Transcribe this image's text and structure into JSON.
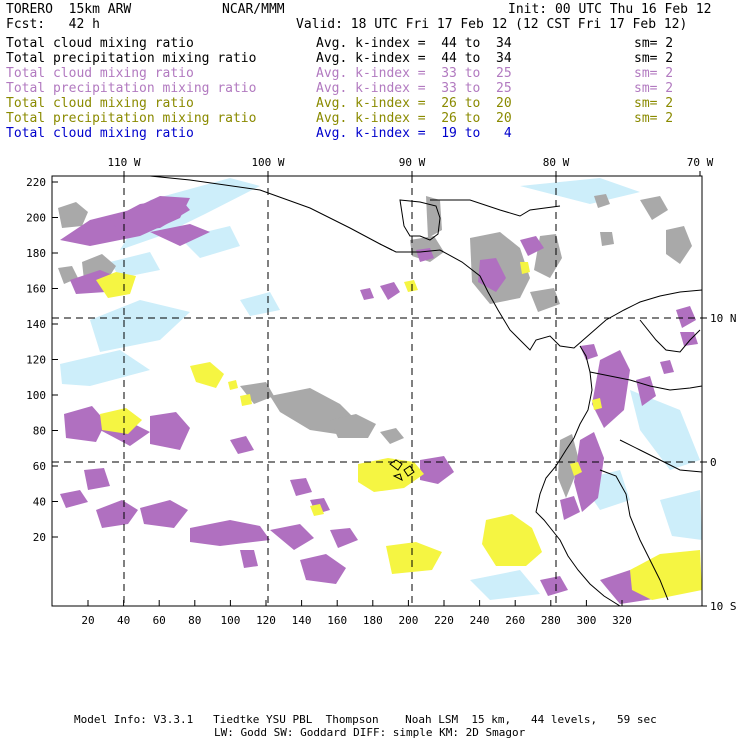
{
  "header": {
    "model": "TORERO  15km ARW",
    "org": "NCAR/MMM",
    "init": "Init: 00 UTC Thu 16 Feb 12",
    "fcst": "Fcst:   42 h",
    "valid": "Valid: 18 UTC Fri 17 Feb 12 (12 CST Fri 17 Feb 12)"
  },
  "legend": [
    {
      "field": "Total cloud mixing ratio",
      "index": "Avg. k-index =  44 to  34",
      "sm": "sm= 2",
      "color": "#000000"
    },
    {
      "field": "Total precipitation mixing ratio",
      "index": "Avg. k-index =  44 to  34",
      "sm": "sm= 2",
      "color": "#000000"
    },
    {
      "field": "Total cloud mixing ratio",
      "index": "Avg. k-index =  33 to  25",
      "sm": "sm= 2",
      "color": "#b27ac0"
    },
    {
      "field": "Total precipitation mixing ratio",
      "index": "Avg. k-index =  33 to  25",
      "sm": "sm= 2",
      "color": "#b27ac0"
    },
    {
      "field": "Total cloud mixing ratio",
      "index": "Avg. k-index =  26 to  20",
      "sm": "sm= 2",
      "color": "#8a8a00"
    },
    {
      "field": "Total precipitation mixing ratio",
      "index": "Avg. k-index =  26 to  20",
      "sm": "sm= 2",
      "color": "#8a8a00"
    },
    {
      "field": "Total cloud mixing ratio",
      "index": "Avg. k-index =  19 to   4",
      "sm": "",
      "color": "#0000cc"
    }
  ],
  "map": {
    "top_lon_labels": [
      "110 W",
      "100 W",
      "90 W",
      "80 W",
      "70 W"
    ],
    "right_lat_labels": [
      "10 N",
      "0",
      "10 S"
    ],
    "y_ticks": [
      "220",
      "200",
      "180",
      "160",
      "140",
      "120",
      "100",
      "80",
      "60",
      "40",
      "20"
    ],
    "x_ticks": [
      "20",
      "40",
      "60",
      "80",
      "100",
      "120",
      "140",
      "160",
      "180",
      "200",
      "220",
      "240",
      "260",
      "280",
      "300",
      "320"
    ]
  },
  "colors": {
    "gray_cloud": "#a9a9a9",
    "purple": "#b070c0",
    "yellow": "#f5f542",
    "cyan": "#cdeefa"
  },
  "footer": {
    "line1": "Model Info: V3.3.1   Tiedtke YSU PBL  Thompson    Noah LSM  15 km,   44 levels,   59 sec",
    "line2": "LW: Godd SW: Goddard DIFF: simple KM: 2D Smagor"
  }
}
